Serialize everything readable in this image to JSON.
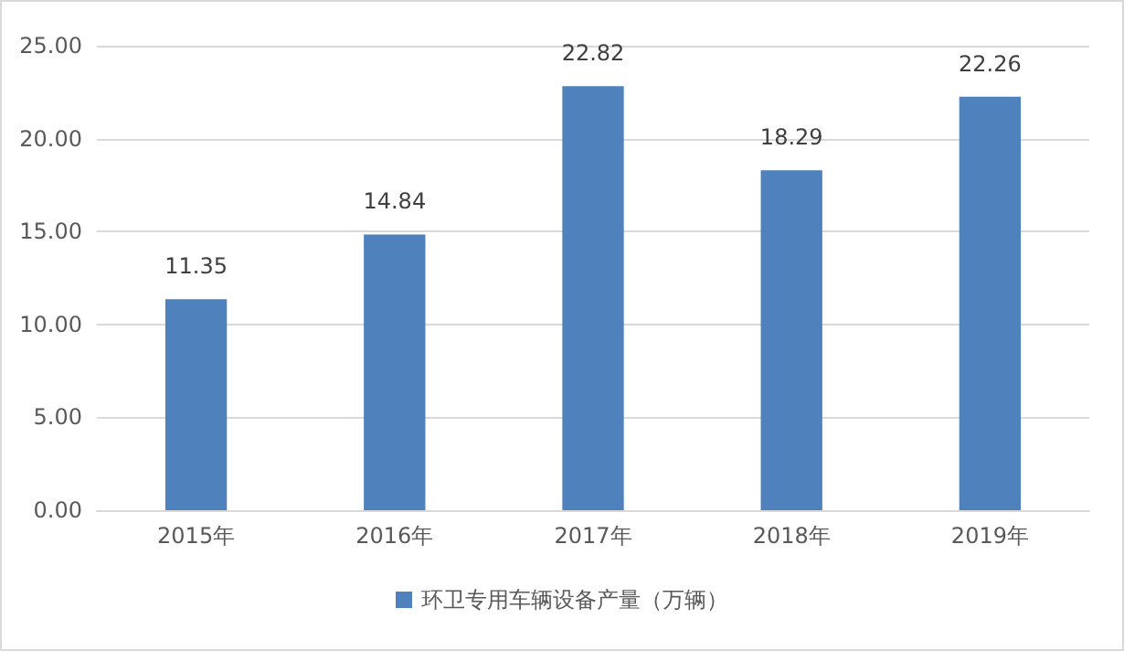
{
  "chart_data": {
    "type": "bar",
    "categories": [
      "2015年",
      "2016年",
      "2017年",
      "2018年",
      "2019年"
    ],
    "series": [
      {
        "name": "环卫专用车辆设备产量（万辆）",
        "color": "#4f81bd",
        "values": [
          11.35,
          14.84,
          22.82,
          18.29,
          22.26
        ]
      }
    ],
    "ylim": [
      0,
      25
    ],
    "yticks": [
      {
        "value": 0,
        "label": "0.00"
      },
      {
        "value": 5,
        "label": "5.00"
      },
      {
        "value": 10,
        "label": "10.00"
      },
      {
        "value": 15,
        "label": "15.00"
      },
      {
        "value": 20,
        "label": "20.00"
      },
      {
        "value": 25,
        "label": "25.00"
      }
    ],
    "grid": "y",
    "legend": "bottom",
    "data_labels": true
  }
}
